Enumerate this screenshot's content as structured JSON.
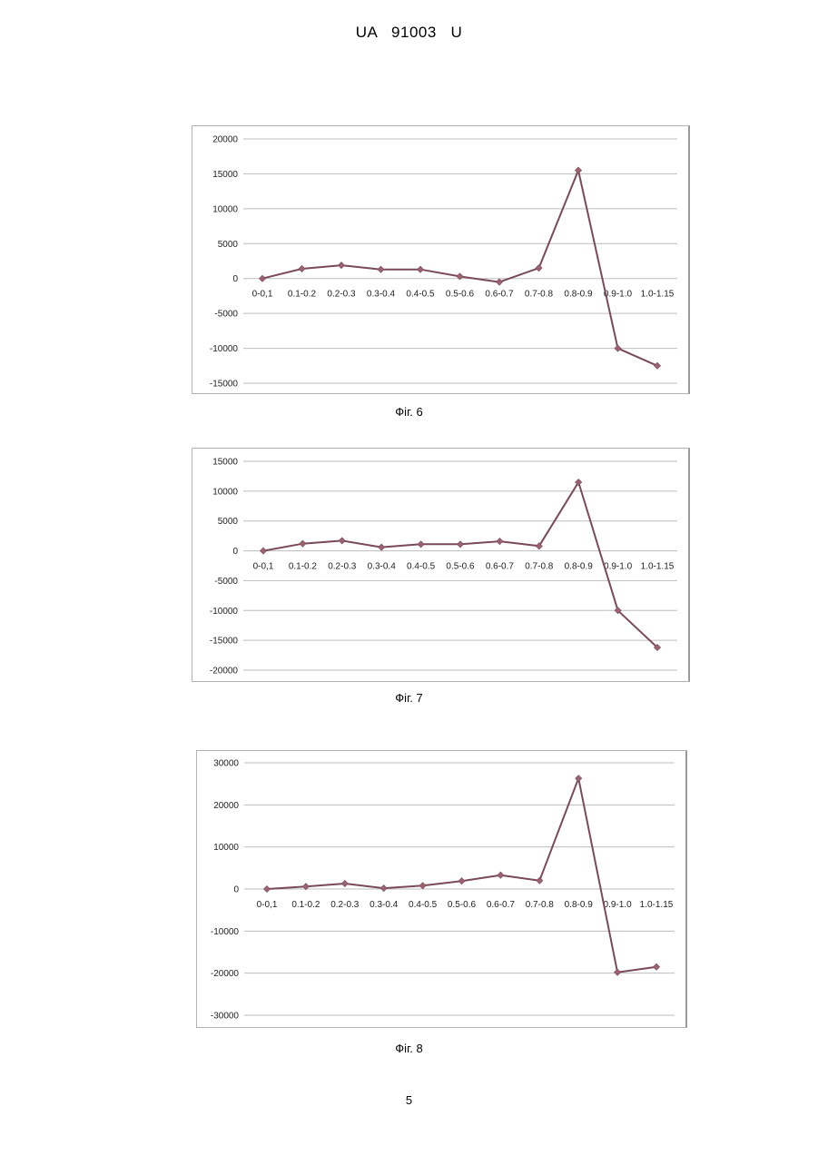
{
  "header": {
    "text": "UA   91003   U"
  },
  "page_number": "5",
  "colors": {
    "line": "#7a4a58",
    "marker": "#9b6270",
    "grid": "#bdbdbd"
  },
  "figures": [
    {
      "caption": "Фіг. 6"
    },
    {
      "caption": "Фіг. 7"
    },
    {
      "caption": "Фіг. 8"
    }
  ],
  "chart_data": [
    {
      "type": "line",
      "categories": [
        "0-0,1",
        "0.1-0.2",
        "0.2-0.3",
        "0.3-0.4",
        "0.4-0.5",
        "0.5-0.6",
        "0.6-0.7",
        "0.7-0.8",
        "0.8-0.9",
        "0.9-1.0",
        "1.0-1.15"
      ],
      "yticks": [
        "20000",
        "15000",
        "10000",
        "5000",
        "0",
        "-5000",
        "-10000",
        "-15000"
      ],
      "ylim": [
        -15000,
        20000
      ],
      "ystep": 5000,
      "grid": true,
      "series": [
        {
          "values": [
            0,
            1400,
            1900,
            1300,
            1300,
            300,
            -500,
            1500,
            15500,
            -10000,
            -12500
          ]
        }
      ]
    },
    {
      "type": "line",
      "categories": [
        "0-0,1",
        "0.1-0.2",
        "0.2-0.3",
        "0.3-0.4",
        "0.4-0.5",
        "0.5-0.6",
        "0.6-0.7",
        "0.7-0.8",
        "0.8-0.9",
        "0.9-1.0",
        "1.0-1.15"
      ],
      "yticks": [
        "15000",
        "10000",
        "5000",
        "0",
        "-5000",
        "-10000",
        "-15000",
        "-20000"
      ],
      "ylim": [
        -20000,
        15000
      ],
      "ystep": 5000,
      "grid": true,
      "series": [
        {
          "values": [
            0,
            1200,
            1700,
            600,
            1100,
            1100,
            1600,
            800,
            11500,
            -10000,
            -16200
          ]
        }
      ]
    },
    {
      "type": "line",
      "categories": [
        "0-0,1",
        "0.1-0.2",
        "0.2-0.3",
        "0.3-0.4",
        "0.4-0.5",
        "0.5-0.6",
        "0.6-0.7",
        "0.7-0.8",
        "0.8-0.9",
        "0.9-1.0",
        "1.0-1.15"
      ],
      "yticks": [
        "30000",
        "20000",
        "10000",
        "0",
        "-10000",
        "-20000",
        "-30000"
      ],
      "ylim": [
        -30000,
        30000
      ],
      "ystep": 10000,
      "grid": true,
      "series": [
        {
          "values": [
            0,
            600,
            1300,
            200,
            800,
            1900,
            3300,
            2000,
            26300,
            -19800,
            -18500
          ]
        }
      ]
    }
  ]
}
